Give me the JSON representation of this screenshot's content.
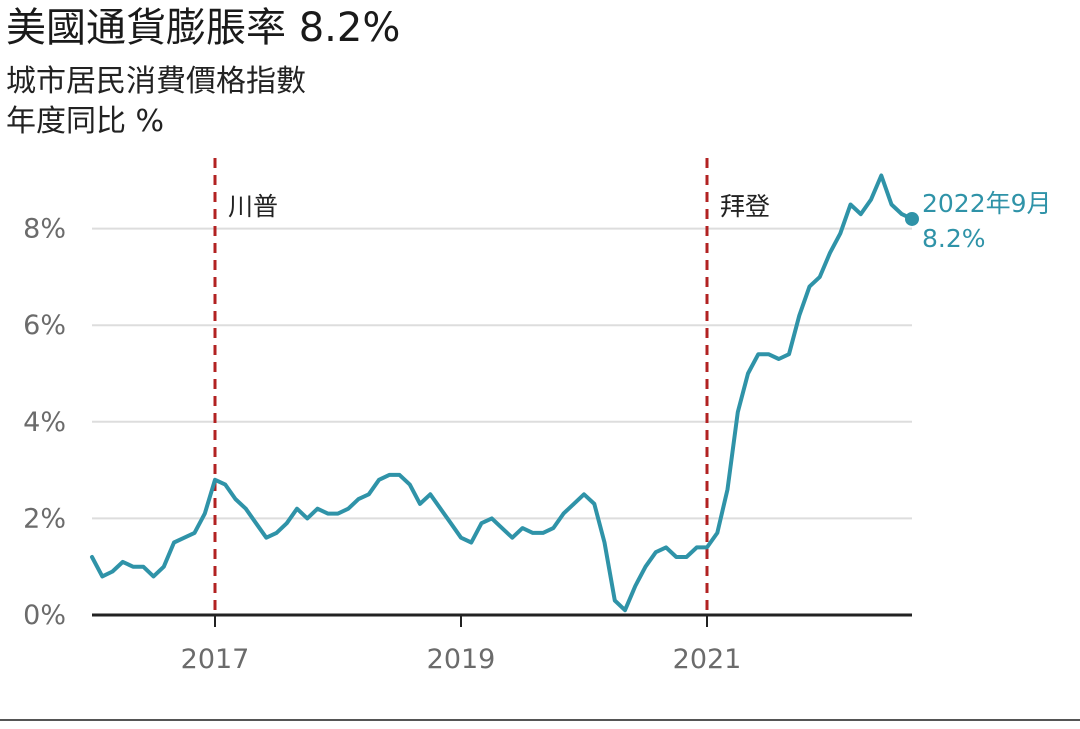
{
  "header": {
    "title": "美國通貨膨脹率 8.2%",
    "subtitle_line1": "城市居民消費價格指數",
    "subtitle_line2": "年度同比 %"
  },
  "colors": {
    "line": "#2f93a8",
    "event_line": "#b22222",
    "grid": "#dddddd",
    "axis": "#222222",
    "end_label": "#2f93a8"
  },
  "chart_data": {
    "type": "line",
    "title": "美國通貨膨脹率 8.2%",
    "subtitle": "城市居民消費價格指數 年度同比 %",
    "xlabel": "",
    "ylabel": "",
    "x_start": "2016-01",
    "x_end": "2022-09",
    "xlim": [
      "2016-01",
      "2022-09"
    ],
    "ylim": [
      0,
      9
    ],
    "yticks": [
      0,
      2,
      4,
      6,
      8
    ],
    "ytick_labels": [
      "0%",
      "2%",
      "4%",
      "6%",
      "8%"
    ],
    "xticks": [
      "2017-01",
      "2019-01",
      "2021-01"
    ],
    "xtick_labels": [
      "2017",
      "2019",
      "2021"
    ],
    "grid": "horizontal",
    "series": [
      {
        "values": [
          1.2,
          0.8,
          0.9,
          1.1,
          1.0,
          1.0,
          0.8,
          1.0,
          1.5,
          1.6,
          1.7,
          2.1,
          2.8,
          2.7,
          2.4,
          2.2,
          1.9,
          1.6,
          1.7,
          1.9,
          2.2,
          2.0,
          2.2,
          2.1,
          2.1,
          2.2,
          2.4,
          2.5,
          2.8,
          2.9,
          2.9,
          2.7,
          2.3,
          2.5,
          2.2,
          1.9,
          1.6,
          1.5,
          1.9,
          2.0,
          1.8,
          1.6,
          1.8,
          1.7,
          1.7,
          1.8,
          2.1,
          2.3,
          2.5,
          2.3,
          1.5,
          0.3,
          0.1,
          0.6,
          1.0,
          1.3,
          1.4,
          1.2,
          1.2,
          1.4,
          1.4,
          1.7,
          2.6,
          4.2,
          5.0,
          5.4,
          5.4,
          5.3,
          5.4,
          6.2,
          6.8,
          7.0,
          7.5,
          7.9,
          8.5,
          8.3,
          8.6,
          9.1,
          8.5,
          8.3,
          8.2
        ]
      }
    ],
    "events": [
      {
        "date": "2017-01",
        "label": "川普"
      },
      {
        "date": "2021-01",
        "label": "拜登"
      }
    ],
    "end_annotation": {
      "line1": "2022年9月",
      "line2": "8.2%"
    }
  }
}
